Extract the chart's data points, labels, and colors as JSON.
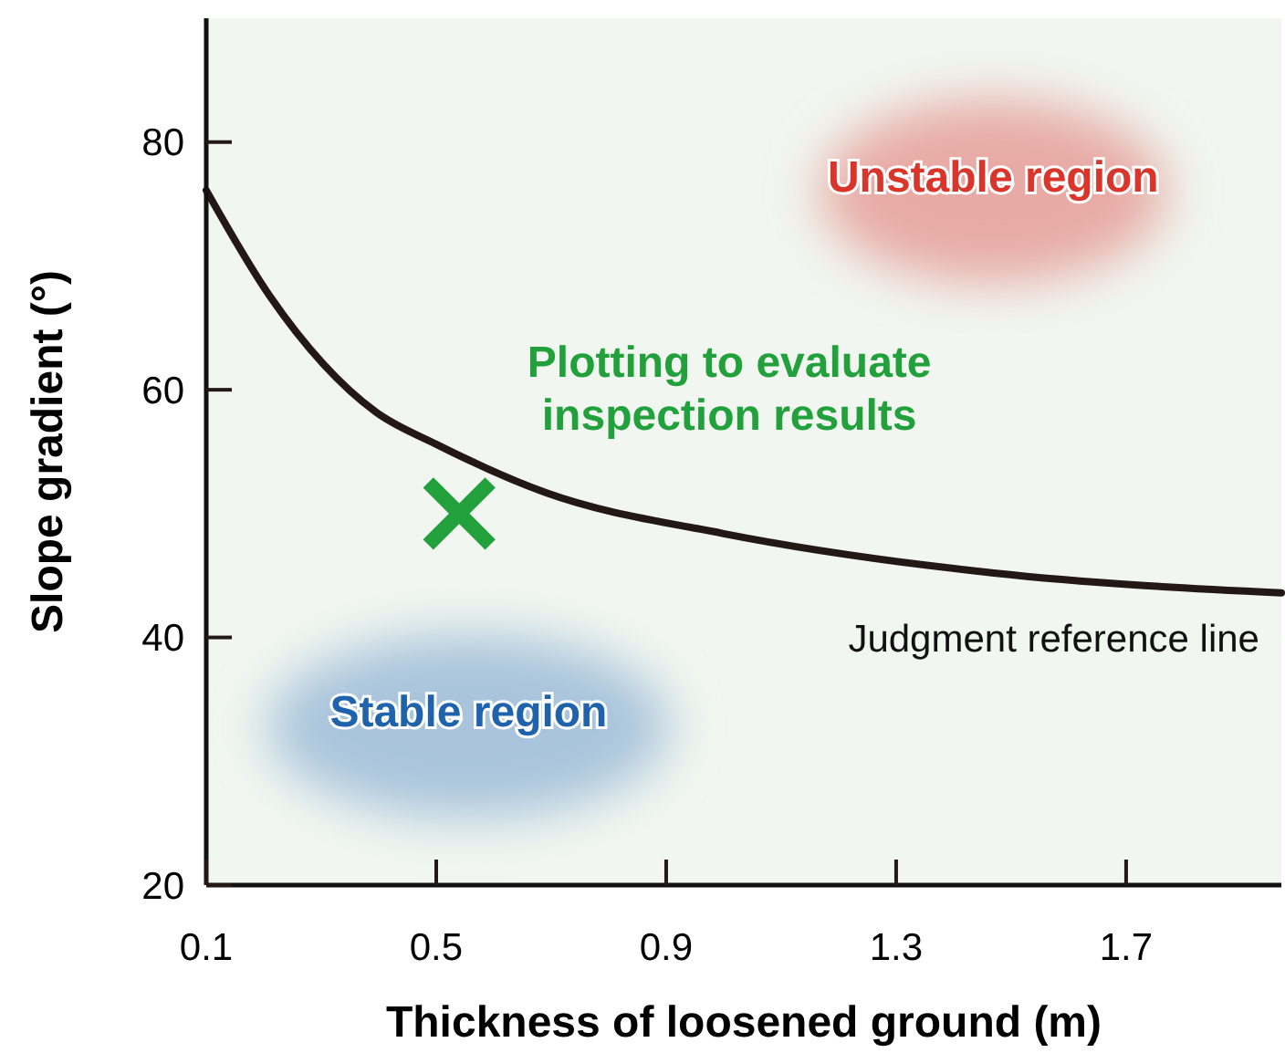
{
  "chart_data": {
    "type": "line",
    "xlabel": "Thickness of loosened ground (m)",
    "ylabel": "Slope gradient (°)",
    "xlim": [
      0.1,
      1.97
    ],
    "xticks": [
      0.1,
      0.5,
      0.9,
      1.3,
      1.7
    ],
    "ylim": [
      20,
      90
    ],
    "yticks": [
      20,
      40,
      60,
      80
    ],
    "series": [
      {
        "name": "Judgment reference line",
        "color": "#231815",
        "x": [
          0.1,
          0.21,
          0.395,
          0.5,
          0.69,
          0.998,
          1.47,
          1.97
        ],
        "values": [
          76.1,
          67.6,
          58.2,
          55.6,
          51.7,
          48.4,
          45.2,
          43.6
        ]
      },
      {
        "name": "Plotting to evaluate inspection results",
        "type": "scatter",
        "color": "#22a03c",
        "x": [
          0.54
        ],
        "values": [
          50
        ],
        "marker": "cross"
      }
    ],
    "annotations": [
      "Unstable region",
      "Stable region"
    ]
  }
}
